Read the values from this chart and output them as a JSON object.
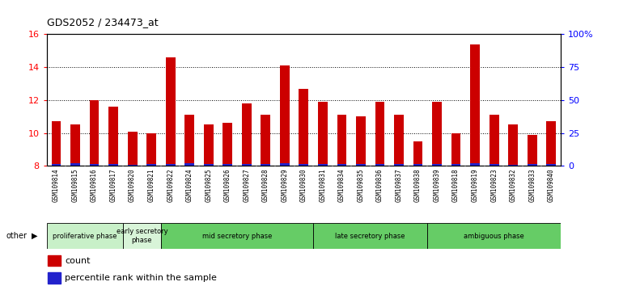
{
  "title": "GDS2052 / 234473_at",
  "samples": [
    "GSM109814",
    "GSM109815",
    "GSM109816",
    "GSM109817",
    "GSM109820",
    "GSM109821",
    "GSM109822",
    "GSM109824",
    "GSM109825",
    "GSM109826",
    "GSM109827",
    "GSM109828",
    "GSM109829",
    "GSM109830",
    "GSM109831",
    "GSM109834",
    "GSM109835",
    "GSM109836",
    "GSM109837",
    "GSM109838",
    "GSM109839",
    "GSM109818",
    "GSM109819",
    "GSM109823",
    "GSM109832",
    "GSM109833",
    "GSM109840"
  ],
  "count_values": [
    10.7,
    10.5,
    12.0,
    11.6,
    10.1,
    10.0,
    14.6,
    11.1,
    10.5,
    10.6,
    11.8,
    11.1,
    14.1,
    12.7,
    11.9,
    11.1,
    11.0,
    11.9,
    11.1,
    9.5,
    11.9,
    10.0,
    15.4,
    11.1,
    10.5,
    9.9,
    10.7
  ],
  "percentile_values": [
    0.12,
    0.15,
    0.1,
    0.1,
    0.08,
    0.1,
    0.12,
    0.18,
    0.1,
    0.1,
    0.1,
    0.1,
    0.15,
    0.1,
    0.1,
    0.1,
    0.1,
    0.1,
    0.1,
    0.1,
    0.12,
    0.1,
    0.18,
    0.1,
    0.08,
    0.1,
    0.1
  ],
  "base_value": 8.0,
  "ylim": [
    8,
    16
  ],
  "yticks_left": [
    8,
    10,
    12,
    14,
    16
  ],
  "yticks_right_vals": [
    0,
    25,
    50,
    75,
    100
  ],
  "yticks_right_labels": [
    "0",
    "25",
    "50",
    "75",
    "100%"
  ],
  "bar_color_red": "#cc0000",
  "bar_color_blue": "#2222cc",
  "phases": [
    {
      "label": "proliferative phase",
      "start": 0,
      "end": 4,
      "color": "#c8f0c8"
    },
    {
      "label": "early secretory\nphase",
      "start": 4,
      "end": 6,
      "color": "#d8f4d8"
    },
    {
      "label": "mid secretory phase",
      "start": 6,
      "end": 14,
      "color": "#66cc66"
    },
    {
      "label": "late secretory phase",
      "start": 14,
      "end": 20,
      "color": "#66cc66"
    },
    {
      "label": "ambiguous phase",
      "start": 20,
      "end": 27,
      "color": "#66cc66"
    }
  ],
  "other_label": "other",
  "plot_bg": "#ffffff",
  "tick_area_bg": "#c8c8c8",
  "legend_count_label": "count",
  "legend_pct_label": "percentile rank within the sample",
  "grid_lines": [
    10,
    12,
    14
  ]
}
